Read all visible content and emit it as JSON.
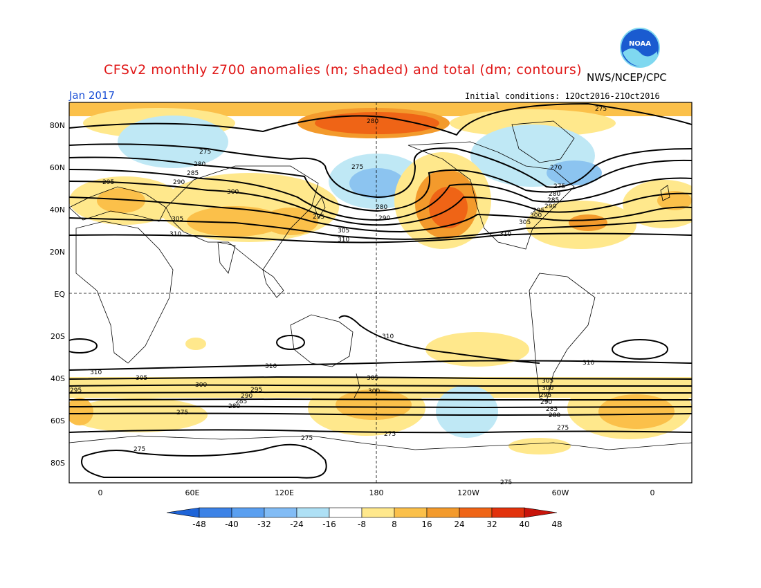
{
  "header": {
    "title": "CFSv2 monthly z700 anomalies (m; shaded) and total (dm; contours)",
    "agency": "NWS/NCEP/CPC",
    "month": "Jan 2017",
    "initial_conditions": "Initial conditions: 12Oct2016-21Oct2016",
    "logo_text": "NOAA"
  },
  "axes": {
    "lat_labels": [
      "80N",
      "60N",
      "40N",
      "20N",
      "EQ",
      "20S",
      "40S",
      "60S",
      "80S"
    ],
    "lon_labels": [
      "0",
      "60E",
      "120E",
      "180",
      "120W",
      "60W",
      "0"
    ]
  },
  "colorbar": {
    "labels": [
      "-48",
      "-40",
      "-32",
      "-24",
      "-16",
      "-8",
      "8",
      "16",
      "24",
      "32",
      "40",
      "48"
    ],
    "colors": [
      "#1e64d8",
      "#3c82e6",
      "#5a9ff0",
      "#82bcf5",
      "#aee0f5",
      "#ffffff",
      "#ffe88c",
      "#fbc04a",
      "#f39a2c",
      "#ef6416",
      "#e2320c",
      "#c8140a"
    ]
  },
  "anomaly_colors": {
    "light_orange": "#ffe88c",
    "orange": "#fbc04a",
    "dark_orange": "#f39a2c",
    "red_orange": "#ef6416",
    "light_blue": "#bfe8f5",
    "mid_blue": "#8cc4f0"
  },
  "contour_labels": [
    "275",
    "280",
    "270",
    "285",
    "290",
    "295",
    "300",
    "305",
    "310"
  ]
}
